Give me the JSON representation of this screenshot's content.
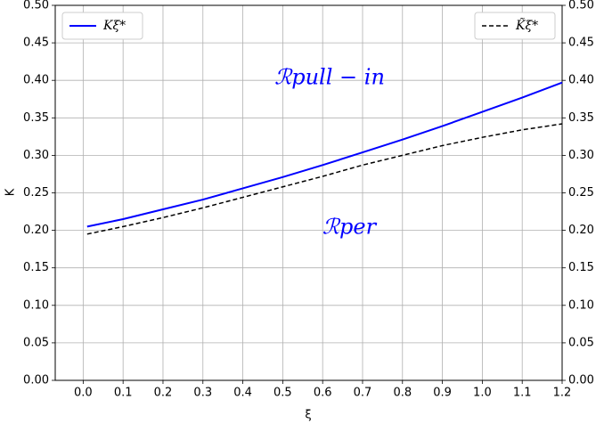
{
  "chart_data": {
    "type": "line",
    "xlabel": "ξ",
    "ylabel": "K",
    "x": [
      0.01,
      0.1,
      0.2,
      0.3,
      0.4,
      0.5,
      0.6,
      0.7,
      0.8,
      0.9,
      1.0,
      1.1,
      1.2
    ],
    "series": [
      {
        "name": "Kξ*",
        "color": "#0000ff",
        "style": "solid",
        "legend": "upper left",
        "values": [
          0.205,
          0.215,
          0.228,
          0.241,
          0.256,
          0.271,
          0.287,
          0.304,
          0.321,
          0.339,
          0.358,
          0.377,
          0.397
        ]
      },
      {
        "name": "K̃ξ*",
        "color": "#000000",
        "style": "dashed",
        "legend": "upper right",
        "values": [
          0.195,
          0.205,
          0.217,
          0.23,
          0.244,
          0.258,
          0.272,
          0.287,
          0.3,
          0.313,
          0.324,
          0.334,
          0.342
        ]
      }
    ],
    "annotations": [
      "ℛpull − in",
      "ℛper"
    ],
    "xlim": [
      -0.07,
      1.2
    ],
    "xticks": [
      {
        "value": 0,
        "label": "0.0"
      },
      0.1,
      0.2,
      0.3,
      0.4,
      0.5,
      0.6,
      0.7,
      0.8,
      0.9,
      {
        "value": 1,
        "label": "1.0"
      },
      1.1,
      1.2
    ],
    "ylim": [
      0,
      0.5
    ],
    "yticks": [
      {
        "value": 0,
        "label": "0.00"
      },
      0.05,
      {
        "value": 0.1,
        "label": "0.10"
      },
      0.15,
      {
        "value": 0.2,
        "label": "0.20"
      },
      0.25,
      {
        "value": 0.3,
        "label": "0.30"
      },
      0.35,
      {
        "value": 0.4,
        "label": "0.40"
      },
      0.45,
      {
        "value": 0.5,
        "label": "0.50"
      }
    ],
    "y2lim": [
      0,
      0.5
    ],
    "y2ticks": [
      {
        "value": 0,
        "label": "0.00"
      },
      0.05,
      {
        "value": 0.1,
        "label": "0.10"
      },
      0.15,
      {
        "value": 0.2,
        "label": "0.20"
      },
      0.25,
      {
        "value": 0.3,
        "label": "0.30"
      },
      0.35,
      {
        "value": 0.4,
        "label": "0.40"
      },
      0.45,
      {
        "value": 0.5,
        "label": "0.50"
      }
    ],
    "grid": true
  }
}
